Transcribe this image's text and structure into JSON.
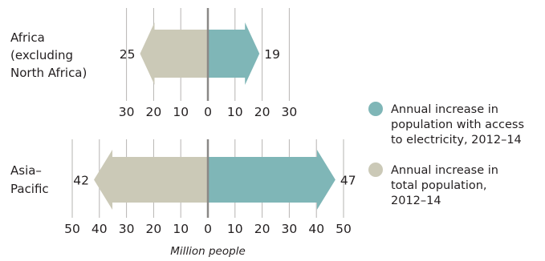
{
  "chart_data": {
    "type": "bar",
    "orientation": "horizontal-diverging",
    "x_label": "Million people",
    "series": [
      {
        "name": "Annual increase in population with access to electricity, 2012–14",
        "color": "#7fb6b7",
        "direction": "right"
      },
      {
        "name": "Annual increase in total population, 2012–14",
        "color": "#cbc9b7",
        "direction": "left"
      }
    ],
    "legend": [
      {
        "lines": [
          "Annual increase in",
          "population with access",
          "to electricity, 2012–14"
        ],
        "color": "#7fb6b7"
      },
      {
        "lines": [
          "Annual increase in",
          "total population,",
          "2012–14"
        ],
        "color": "#cbc9b7"
      }
    ],
    "panels": [
      {
        "category_lines": [
          "Africa",
          "(excluding",
          "North Africa)"
        ],
        "electricity_access": 19,
        "total_population": 25,
        "electricity_label": "19",
        "population_label": "25",
        "x_max": 30,
        "ticks": [
          30,
          20,
          10,
          0,
          10,
          20,
          30
        ],
        "tick_labels": [
          "30",
          "20",
          "10",
          "0",
          "10",
          "20",
          "30"
        ]
      },
      {
        "category_lines": [
          "Asia–",
          "Pacific"
        ],
        "electricity_access": 47,
        "total_population": 42,
        "electricity_label": "47",
        "population_label": "42",
        "x_max": 50,
        "ticks": [
          50,
          40,
          30,
          20,
          10,
          0,
          10,
          20,
          30,
          40,
          50
        ],
        "tick_labels": [
          "50",
          "40",
          "30",
          "20",
          "10",
          "0",
          "10",
          "20",
          "30",
          "40",
          "50"
        ]
      }
    ],
    "legend_placement": "right",
    "grid": true
  }
}
